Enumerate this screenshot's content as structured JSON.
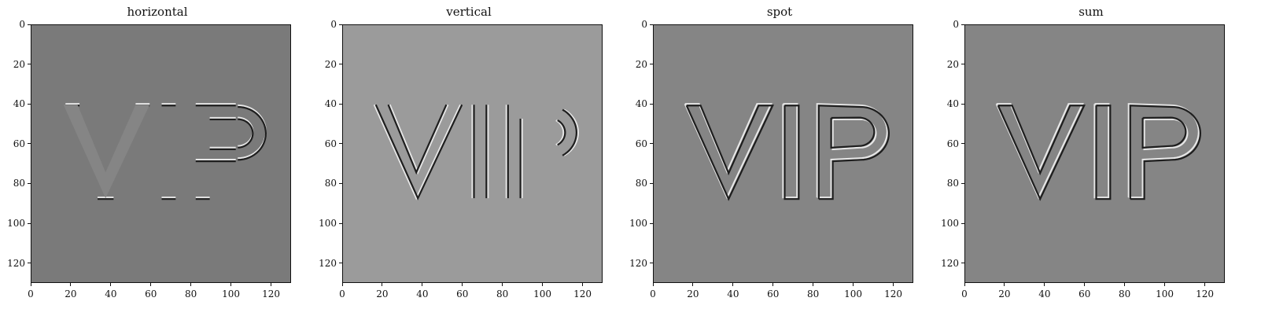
{
  "chart_data": [
    {
      "type": "heatmap",
      "title": "horizontal",
      "bg": "#7a7a7a",
      "text": "VIP",
      "parts": "horizontal-edges",
      "xlim": [
        0,
        130
      ],
      "ylim": [
        130,
        0
      ],
      "xticks": [
        0,
        20,
        40,
        60,
        80,
        100,
        120
      ],
      "yticks": [
        0,
        20,
        40,
        60,
        80,
        100,
        120
      ],
      "grid": false
    },
    {
      "type": "heatmap",
      "title": "vertical",
      "bg": "#9b9b9b",
      "text": "VIP",
      "parts": "vertical-edges",
      "xlim": [
        0,
        130
      ],
      "ylim": [
        130,
        0
      ],
      "xticks": [
        0,
        20,
        40,
        60,
        80,
        100,
        120
      ],
      "yticks": [
        0,
        20,
        40,
        60,
        80,
        100,
        120
      ],
      "grid": false
    },
    {
      "type": "heatmap",
      "title": "spot",
      "bg": "#858585",
      "text": "VIP",
      "parts": "all-edges",
      "xlim": [
        0,
        130
      ],
      "ylim": [
        130,
        0
      ],
      "xticks": [
        0,
        20,
        40,
        60,
        80,
        100,
        120
      ],
      "yticks": [
        0,
        20,
        40,
        60,
        80,
        100,
        120
      ],
      "grid": false
    },
    {
      "type": "heatmap",
      "title": "sum",
      "bg": "#858585",
      "text": "VIP",
      "parts": "all-edges",
      "xlim": [
        0,
        130
      ],
      "ylim": [
        130,
        0
      ],
      "xticks": [
        0,
        20,
        40,
        60,
        80,
        100,
        120
      ],
      "yticks": [
        0,
        20,
        40,
        60,
        80,
        100,
        120
      ],
      "grid": false
    }
  ]
}
